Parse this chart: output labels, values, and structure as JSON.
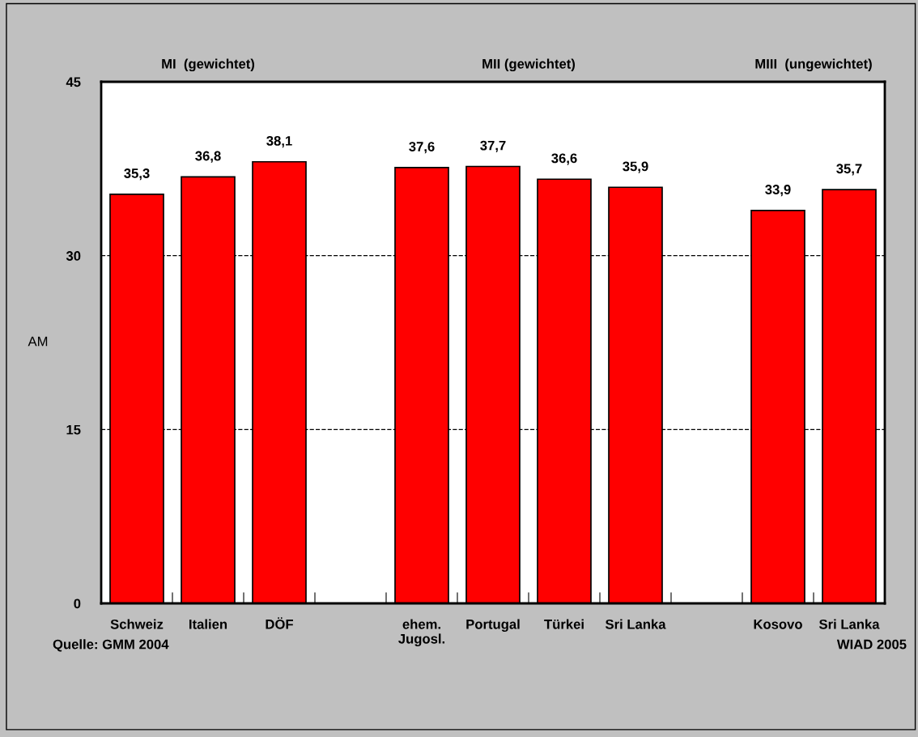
{
  "chart_data": {
    "type": "bar",
    "ylabel": "AM",
    "categories": [
      "Schweiz",
      "Italien",
      "DÖF",
      null,
      "ehem.\nJugosl.",
      "Portugal",
      "Türkei",
      "Sri Lanka",
      null,
      "Kosovo",
      "Sri Lanka"
    ],
    "values": [
      35.3,
      36.8,
      38.1,
      null,
      37.6,
      37.7,
      36.6,
      35.9,
      null,
      33.9,
      35.7
    ],
    "value_labels": [
      "35,3",
      "36,8",
      "38,1",
      null,
      "37,6",
      "37,7",
      "36,6",
      "35,9",
      null,
      "33,9",
      "35,7"
    ],
    "color": "#ff0000",
    "ylim": [
      0,
      45
    ],
    "yticks": [
      0,
      15,
      30,
      45
    ],
    "grid": "y",
    "line_style": "dashed",
    "legend": false,
    "annotations": [
      "MI  (gewichtet)",
      "MII (gewichtet)",
      "MIII  (ungewichtet)",
      "Quelle: GMM 2004",
      "WIAD 2005"
    ]
  }
}
